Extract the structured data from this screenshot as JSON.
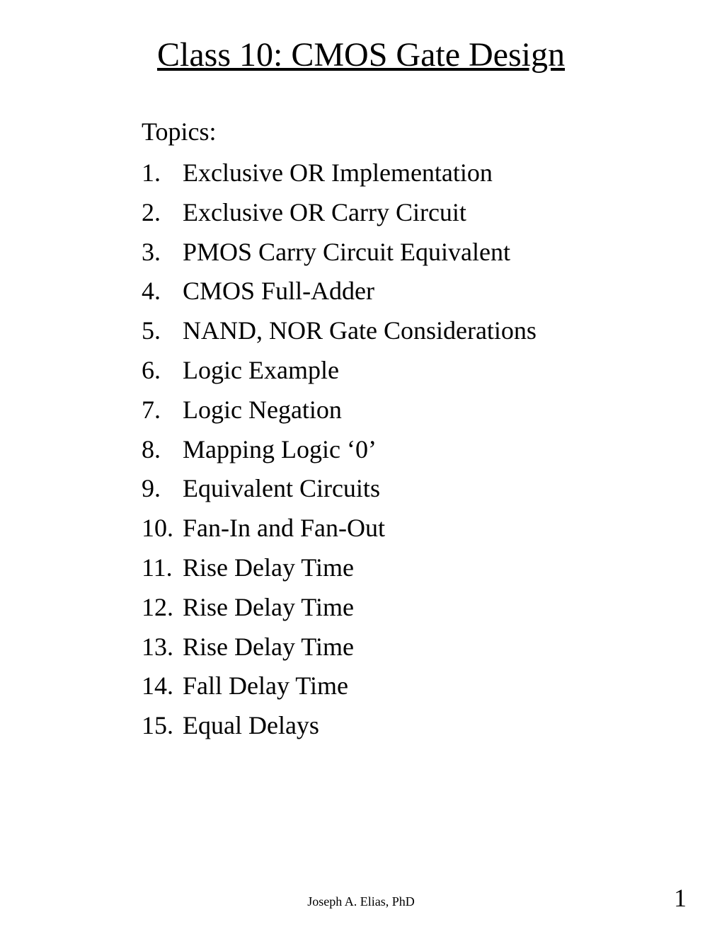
{
  "title": "Class 10: CMOS Gate Design",
  "topics_heading": "Topics:",
  "topics": [
    {
      "num": "1.",
      "text": "Exclusive OR Implementation"
    },
    {
      "num": "2.",
      "text": "Exclusive OR Carry Circuit"
    },
    {
      "num": "3.",
      "text": "PMOS Carry Circuit Equivalent"
    },
    {
      "num": "4.",
      "text": "CMOS Full-Adder"
    },
    {
      "num": "5.",
      "text": "NAND, NOR Gate Considerations"
    },
    {
      "num": "6.",
      "text": "Logic Example"
    },
    {
      "num": "7.",
      "text": "Logic Negation"
    },
    {
      "num": "8.",
      "text": "Mapping Logic ‘0’"
    },
    {
      "num": "9.",
      "text": "Equivalent Circuits"
    },
    {
      "num": "10.",
      "text": "Fan-In and Fan-Out"
    },
    {
      "num": "11.",
      "text": "Rise Delay Time"
    },
    {
      "num": "12.",
      "text": "Rise Delay Time"
    },
    {
      "num": "13.",
      "text": "Rise Delay Time"
    },
    {
      "num": "14.",
      "text": "Fall Delay Time"
    },
    {
      "num": "15.",
      "text": "Equal Delays"
    }
  ],
  "footer": {
    "author": "Joseph A. Elias, PhD",
    "page_number": "1"
  },
  "styling": {
    "background_color": "#ffffff",
    "text_color": "#000000",
    "title_fontsize": 48,
    "body_fontsize": 36,
    "footer_author_fontsize": 18,
    "footer_page_fontsize": 36,
    "font_family": "Times New Roman"
  }
}
